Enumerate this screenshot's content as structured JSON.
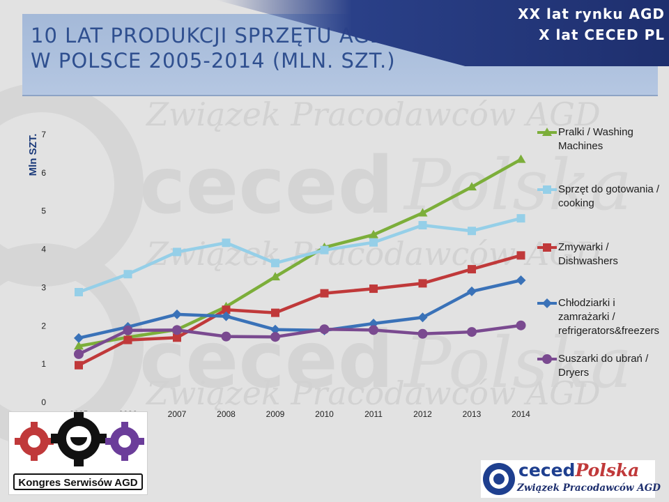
{
  "slide": {
    "title_line1": "10 LAT PRODUKCJI SPRZĘTU AGD",
    "title_line2": "W POLSCE 2005-2014 (MLN. SZT.)",
    "corner_line1": "XX lat rynku AGD",
    "corner_line2": "X lat CECED PL",
    "watermark_text": "Związek Pracodawców AGD",
    "colors": {
      "title": "#2f4f8f",
      "band": "#a9bcd9",
      "corner": "#253b7e"
    }
  },
  "logos": {
    "left_text": "Kongres Serwisów AGD",
    "right_word_1": "ceced",
    "right_word_2": "Polska",
    "right_sub": "Związek Pracodawców AGD"
  },
  "chart_data": {
    "type": "line",
    "ylabel": "Mln SZT.",
    "ylim": [
      0,
      7
    ],
    "yticks": [
      0,
      1,
      2,
      3,
      4,
      5,
      6,
      7
    ],
    "grid": false,
    "legend": "right",
    "categories": [
      "2005",
      "2006",
      "2007",
      "2008",
      "2009",
      "2010",
      "2011",
      "2012",
      "2013",
      "2014"
    ],
    "series": [
      {
        "name": "Pralki / Washing Machines",
        "color": "#7cae3a",
        "marker": "triangle",
        "values": [
          1.47,
          1.7,
          1.9,
          2.5,
          3.28,
          4.05,
          4.38,
          4.95,
          5.63,
          6.35
        ]
      },
      {
        "name": "Sprzęt do gotowania / cooking",
        "color": "#95cfe8",
        "marker": "square",
        "values": [
          2.88,
          3.35,
          3.93,
          4.17,
          3.64,
          3.98,
          4.18,
          4.63,
          4.48,
          4.81
        ]
      },
      {
        "name": "Zmywarki / Dishwashers",
        "color": "#c0393a",
        "marker": "square",
        "values": [
          0.97,
          1.63,
          1.69,
          2.42,
          2.34,
          2.85,
          2.97,
          3.11,
          3.48,
          3.84
        ]
      },
      {
        "name": "Chłodziarki i zamrażarki / refrigerators&freezers",
        "color": "#3a72b8",
        "marker": "diamond",
        "values": [
          1.68,
          1.97,
          2.3,
          2.25,
          1.9,
          1.88,
          2.06,
          2.22,
          2.9,
          3.19
        ]
      },
      {
        "name": "Suszarki do ubrań / Dryers",
        "color": "#7a4a90",
        "marker": "circle",
        "values": [
          1.26,
          1.88,
          1.89,
          1.72,
          1.71,
          1.91,
          1.89,
          1.79,
          1.84,
          2.01
        ]
      }
    ]
  }
}
